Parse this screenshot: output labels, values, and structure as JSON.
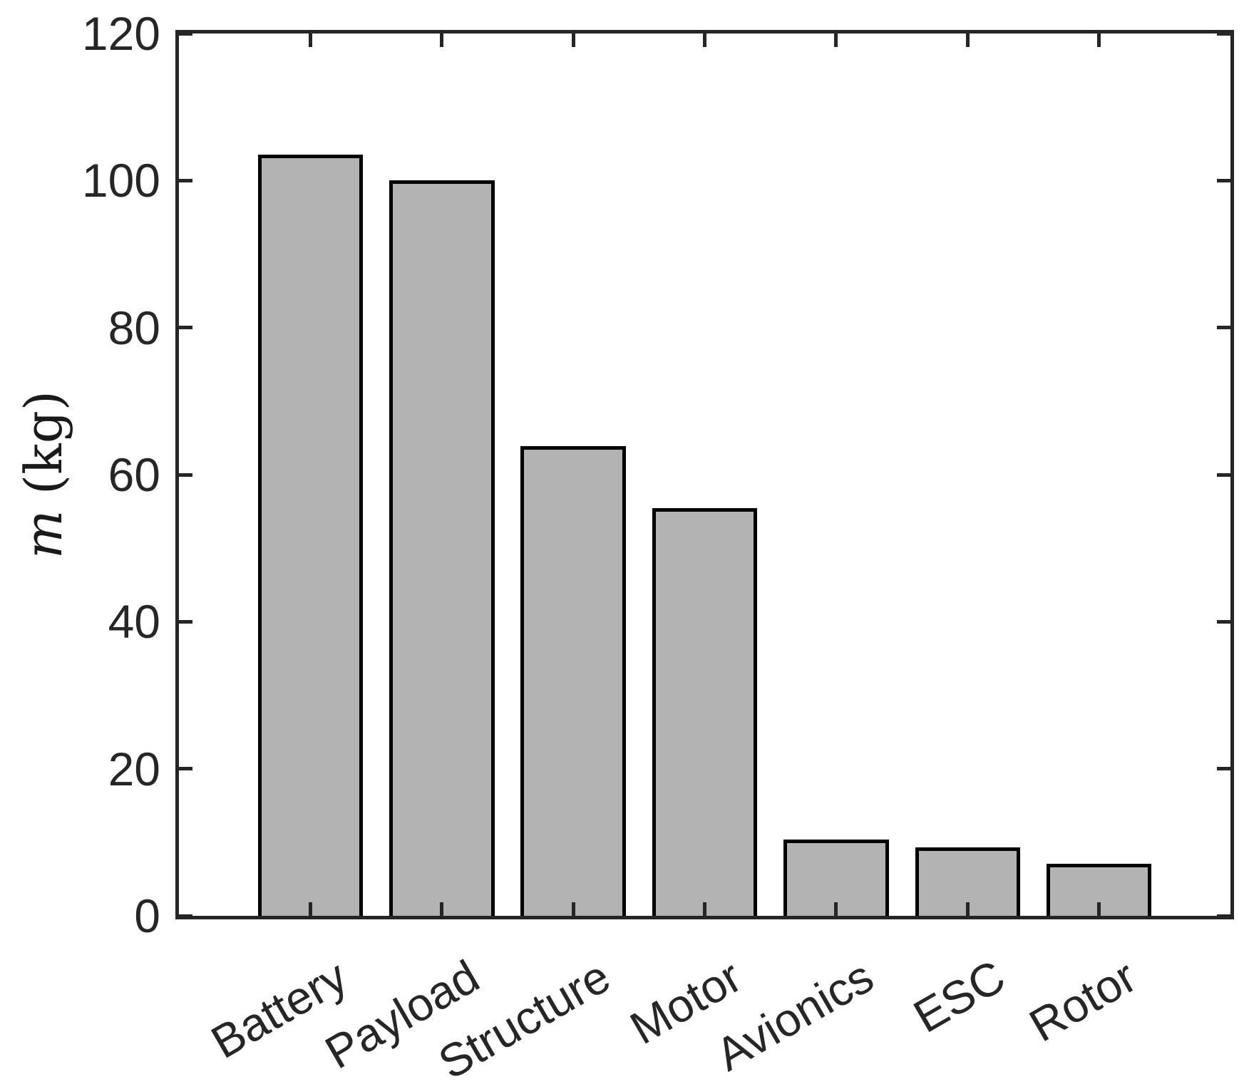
{
  "chart_data": {
    "type": "bar",
    "title": "",
    "categories": [
      "Battery",
      "Payload",
      "Structure",
      "Motor",
      "Avionics",
      "ESC",
      "Rotor"
    ],
    "values": [
      103.5,
      100.0,
      63.9,
      55.4,
      10.4,
      9.3,
      7.1
    ],
    "xlabel": "",
    "ylabel": "m (kg)",
    "ylabel_var": "m",
    "ylabel_unit": "(kg)",
    "ylim": [
      0,
      120
    ],
    "yticks": [
      0,
      20,
      40,
      60,
      80,
      100,
      120
    ],
    "xtick_rotation_deg": 30,
    "grid": false,
    "legend": false,
    "box": true,
    "tick_direction": "in",
    "bar_fill_color": "#b3b3b3",
    "bar_edge_color": "#000000",
    "axis_color": "#262626",
    "background_color": "#ffffff"
  }
}
